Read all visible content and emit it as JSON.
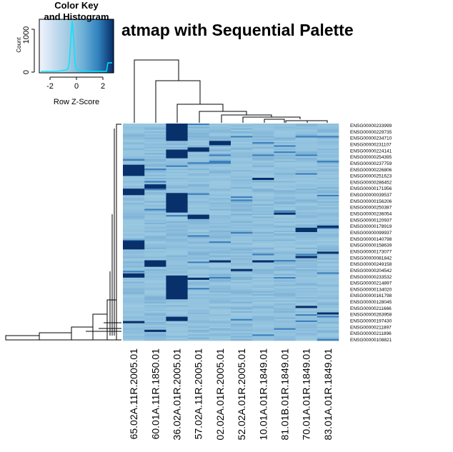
{
  "chart_data": {
    "type": "heatmap",
    "title": "Heatmap with Sequential Palette",
    "title_visible": "atmap with Sequential Palette",
    "palette": [
      "#eef3fb",
      "#c6dbef",
      "#9ecae1",
      "#6baed6",
      "#3182bd",
      "#08306b"
    ],
    "cell_base_color": "#8fc0dd",
    "color_key": {
      "title_line1": "Color Key",
      "title_line2": "and Histogram",
      "xlabel": "Row Z-Score",
      "ylabel": "Count",
      "x_ticks": [
        "-2",
        "0",
        "2"
      ],
      "y_ticks": [
        "0",
        "1000"
      ],
      "histogram_color": "#00e5ff"
    },
    "columns": [
      "65.02A.11R.2005.01",
      "60.01A.11R.1850.01",
      "36.02A.01R.2005.01",
      "57.02A.11R.2005.01",
      "02.02A.01R.2005.01",
      "52.02A.01R.2005.01",
      "10.01A.01R.1849.01",
      "81.01B.01R.1849.01",
      "70.01A.01R.1849.01",
      "83.01A.01R.1849.01"
    ],
    "row_labels": [
      "ENSG00000233999",
      "ENSG00000229735",
      "ENSG00000234710",
      "ENSG00000231107",
      "ENSG00000224141",
      "ENSG00000254395",
      "ENSG00000237759",
      "ENSG00000226806",
      "ENSG00000251623",
      "ENSG00000286452",
      "ENSG00000171956",
      "ENSG00000039537",
      "ENSG00000156206",
      "ENSG00000250387",
      "ENSG00000236054",
      "ENSG00000120937",
      "ENSG00000178919",
      "ENSG00000099937",
      "ENSG00000140798",
      "ENSG00000158639",
      "ENSG00000173077",
      "ENSG00000081842",
      "ENSG00000249158",
      "ENSG00000204542",
      "ENSG00000233532",
      "ENSG00000214897",
      "ENSG00000134020",
      "ENSG00000161798",
      "ENSG00000128045",
      "ENSG00000211666",
      "ENSG00000263958",
      "ENSG00000197430",
      "ENSG00000211897",
      "ENSG00000211896",
      "ENSG00000108821"
    ],
    "dark_blocks": [
      {
        "col": 0,
        "from": 0.19,
        "to": 0.24
      },
      {
        "col": 0,
        "from": 0.3,
        "to": 0.33
      },
      {
        "col": 0,
        "from": 0.54,
        "to": 0.58
      },
      {
        "col": 0,
        "from": 0.69,
        "to": 0.71
      },
      {
        "col": 0,
        "from": 0.91,
        "to": 0.92
      },
      {
        "col": 1,
        "from": 0.28,
        "to": 0.3
      },
      {
        "col": 1,
        "from": 0.63,
        "to": 0.66
      },
      {
        "col": 1,
        "from": 0.95,
        "to": 0.96
      },
      {
        "col": 2,
        "from": 0.0,
        "to": 0.08
      },
      {
        "col": 2,
        "from": 0.12,
        "to": 0.16
      },
      {
        "col": 2,
        "from": 0.32,
        "to": 0.41
      },
      {
        "col": 2,
        "from": 0.7,
        "to": 0.81
      },
      {
        "col": 2,
        "from": 0.89,
        "to": 0.91
      },
      {
        "col": 3,
        "from": 0.11,
        "to": 0.13
      },
      {
        "col": 3,
        "from": 0.42,
        "to": 0.44
      },
      {
        "col": 3,
        "from": 0.71,
        "to": 0.72
      },
      {
        "col": 4,
        "from": 0.08,
        "to": 0.1
      },
      {
        "col": 4,
        "from": 0.63,
        "to": 0.64
      },
      {
        "col": 5,
        "from": 0.67,
        "to": 0.68
      },
      {
        "col": 6,
        "from": 0.25,
        "to": 0.26
      },
      {
        "col": 6,
        "from": 0.63,
        "to": 0.64
      },
      {
        "col": 7,
        "from": 0.41,
        "to": 0.42
      },
      {
        "col": 8,
        "from": 0.48,
        "to": 0.5
      },
      {
        "col": 8,
        "from": 0.61,
        "to": 0.62
      },
      {
        "col": 8,
        "from": 0.84,
        "to": 0.85
      },
      {
        "col": 9,
        "from": 0.47,
        "to": 0.48
      },
      {
        "col": 9,
        "from": 0.59,
        "to": 0.6
      },
      {
        "col": 9,
        "from": 0.87,
        "to": 0.88
      }
    ]
  }
}
